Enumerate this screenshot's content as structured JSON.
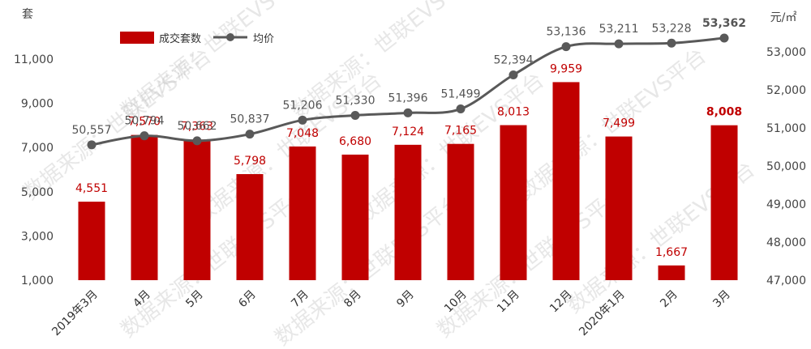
{
  "chart_data": {
    "type": "bar",
    "categories": [
      "2019年3月",
      "4月",
      "5月",
      "6月",
      "7月",
      "8月",
      "9月",
      "10月",
      "11月",
      "12月",
      "2020年1月",
      "2月",
      "3月"
    ],
    "series": [
      {
        "name": "成交套数",
        "type": "bar",
        "axis": "left",
        "color": "#c00000",
        "values": [
          4551,
          7570,
          7363,
          5798,
          7048,
          6680,
          7124,
          7165,
          8013,
          9959,
          7499,
          1667,
          8008
        ],
        "labels": [
          "4,551",
          "7,570",
          "7,363",
          "5,798",
          "7,048",
          "6,680",
          "7,124",
          "7,165",
          "8,013",
          "9,959",
          "7,499",
          "1,667",
          "8,008"
        ]
      },
      {
        "name": "均价",
        "type": "line",
        "axis": "right",
        "color": "#595959",
        "values": [
          50557,
          50794,
          50662,
          50837,
          51206,
          51330,
          51396,
          51499,
          52394,
          53136,
          53211,
          53228,
          53362
        ],
        "labels": [
          "50,557",
          "50,794",
          "50,662",
          "50,837",
          "51,206",
          "51,330",
          "51,396",
          "51,499",
          "52,394",
          "53,136",
          "53,211",
          "53,228",
          "53,362"
        ]
      }
    ],
    "left_axis": {
      "unit": "套",
      "range": [
        1000,
        11000
      ],
      "ticks": [
        1000,
        3000,
        5000,
        7000,
        9000,
        11000
      ],
      "tick_labels": [
        "1,000",
        "3,000",
        "5,000",
        "7,000",
        "9,000",
        "11,000"
      ]
    },
    "right_axis": {
      "unit": "元/㎡",
      "range": [
        47000,
        53000
      ],
      "ticks": [
        47000,
        48000,
        49000,
        50000,
        51000,
        52000,
        53000
      ],
      "tick_labels": [
        "47,000",
        "48,000",
        "49,000",
        "50,000",
        "51,000",
        "52,000",
        "53,000"
      ]
    },
    "legend": {
      "position": "top-left"
    },
    "grid": false,
    "highlight_last": true,
    "watermark": "数据来源：世联EVS平台"
  }
}
